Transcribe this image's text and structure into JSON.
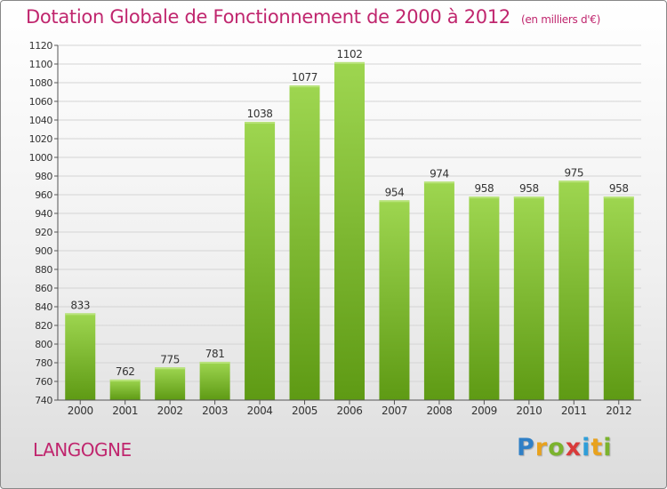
{
  "header": {
    "title": "Dotation Globale de Fonctionnement de 2000 à 2012",
    "subtitle": "(en milliers d'€)"
  },
  "footer": {
    "city": "LANGOGNE",
    "logo_text": "Proxiti"
  },
  "colors": {
    "bar_top": "#9ed650",
    "bar_bottom": "#5e9a14",
    "title": "#c0266e",
    "grid": "#d4d4d4"
  },
  "chart_data": {
    "type": "bar",
    "title": "Dotation Globale de Fonctionnement de 2000 à 2012",
    "subtitle": "(en milliers d'€)",
    "xlabel": "",
    "ylabel": "",
    "categories": [
      "2000",
      "2001",
      "2002",
      "2003",
      "2004",
      "2005",
      "2006",
      "2007",
      "2008",
      "2009",
      "2010",
      "2011",
      "2012"
    ],
    "values": [
      833,
      762,
      775,
      781,
      1038,
      1077,
      1102,
      954,
      974,
      958,
      958,
      975,
      958
    ],
    "ylim": [
      740,
      1120
    ],
    "yticks": [
      740,
      760,
      780,
      800,
      820,
      840,
      860,
      880,
      900,
      920,
      940,
      960,
      980,
      1000,
      1020,
      1040,
      1060,
      1080,
      1100,
      1120
    ],
    "grid": true,
    "legend": "none",
    "data_labels": true
  }
}
